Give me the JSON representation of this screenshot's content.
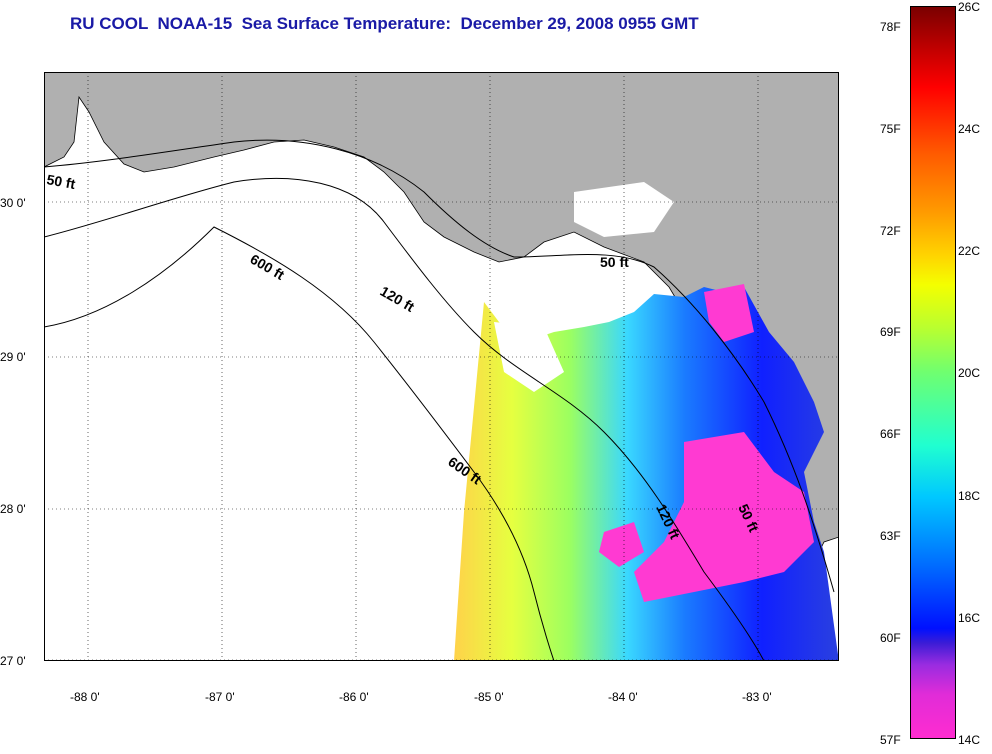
{
  "title": "RU COOL  NOAA-15  Sea Surface Temperature:  December 29, 2008 0955 GMT",
  "colors": {
    "land": "#b0b0b0",
    "cloud": "#ffffff",
    "title": "#1a1aa6"
  },
  "map": {
    "lat_ticks": [
      "30 0'",
      "29 0'",
      "28 0'",
      "27 0'"
    ],
    "lon_ticks": [
      "-88 0'",
      "-87 0'",
      "-86 0'",
      "-85 0'",
      "-84 0'",
      "-83 0'"
    ],
    "contours": [
      "50 ft",
      "600 ft",
      "120 ft",
      "50 ft",
      "600 ft",
      "120 ft",
      "50 ft"
    ]
  },
  "colorbar": {
    "fahrenheit": [
      "78F",
      "75F",
      "72F",
      "69F",
      "66F",
      "63F",
      "60F",
      "57F"
    ],
    "celsius": [
      "26C",
      "24C",
      "22C",
      "20C",
      "18C",
      "16C",
      "14C"
    ]
  }
}
